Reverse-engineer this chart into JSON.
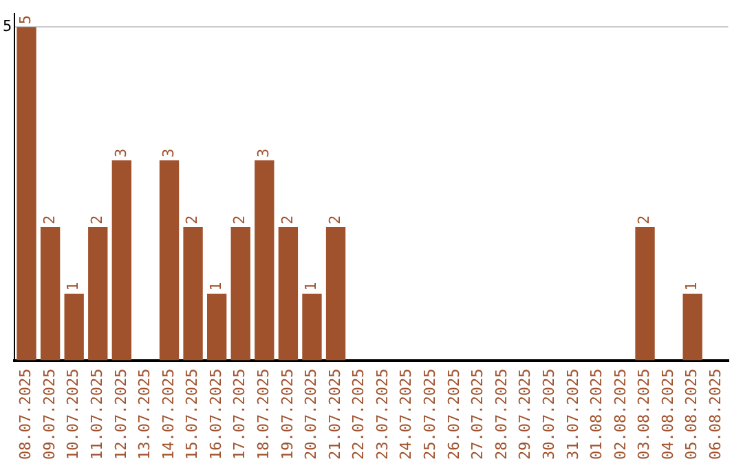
{
  "chart_data": {
    "type": "bar",
    "categories": [
      "08.07.2025",
      "09.07.2025",
      "10.07.2025",
      "11.07.2025",
      "12.07.2025",
      "13.07.2025",
      "14.07.2025",
      "15.07.2025",
      "16.07.2025",
      "17.07.2025",
      "18.07.2025",
      "19.07.2025",
      "20.07.2025",
      "21.07.2025",
      "22.07.2025",
      "23.07.2025",
      "24.07.2025",
      "25.07.2025",
      "26.07.2025",
      "27.07.2025",
      "28.07.2025",
      "29.07.2025",
      "30.07.2025",
      "31.07.2025",
      "01.08.2025",
      "02.08.2025",
      "03.08.2025",
      "04.08.2025",
      "05.08.2025",
      "06.08.2025"
    ],
    "values": [
      5,
      2,
      1,
      2,
      3,
      0,
      3,
      2,
      1,
      2,
      3,
      2,
      1,
      2,
      0,
      0,
      0,
      0,
      0,
      0,
      0,
      0,
      0,
      0,
      0,
      0,
      2,
      0,
      1,
      0
    ],
    "value_labels": [
      "5",
      "2",
      "1",
      "2",
      "3",
      null,
      "3",
      "2",
      "1",
      "2",
      "3",
      "2",
      "1",
      "2",
      null,
      null,
      null,
      null,
      null,
      null,
      null,
      null,
      null,
      null,
      null,
      null,
      "2",
      null,
      "1",
      null
    ],
    "color": "#a0522d",
    "ylim": [
      0,
      5.2
    ],
    "yticks": [
      5
    ],
    "grid": "y"
  }
}
